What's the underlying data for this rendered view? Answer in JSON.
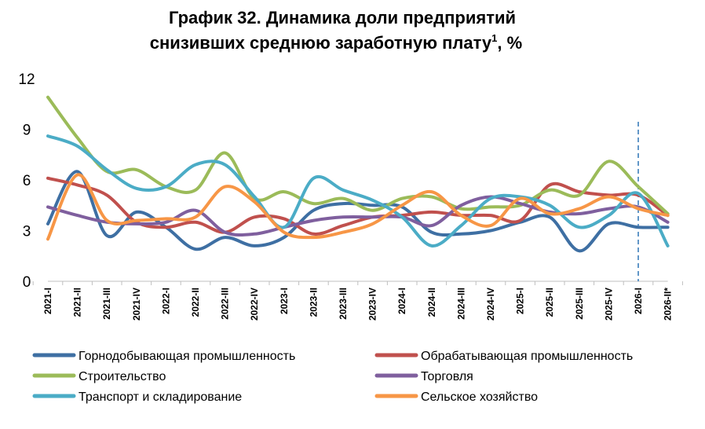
{
  "chart_data": {
    "type": "line",
    "title_line1": "График 32. Динамика доли предприятий",
    "title_line2": "снизивших среднюю заработную плату",
    "title_sup": "1",
    "title_suffix": ", %",
    "ylim": [
      0,
      12
    ],
    "yticks": [
      0,
      3,
      6,
      9,
      12
    ],
    "categories": [
      "2021-I",
      "2021-II",
      "2021-III",
      "2021-IV",
      "2022-I",
      "2022-II",
      "2022-III",
      "2022-IV",
      "2023-I",
      "2023-II",
      "2023-III",
      "2023-IV",
      "2024-I",
      "2024-II",
      "2024-III",
      "2024-IV",
      "2025-I",
      "2025-II",
      "2025-III",
      "2025-IV",
      "2026-I",
      "2026-II*"
    ],
    "forecast_marker_category": "2026-I",
    "grid": false,
    "legend_position": "bottom",
    "series": [
      {
        "name": "Горнодобывающая промышленность",
        "color": "#3e6fa3",
        "values": [
          3.4,
          6.5,
          2.7,
          4.1,
          3.2,
          1.9,
          2.6,
          2.1,
          2.6,
          4.2,
          4.6,
          4.5,
          4.4,
          2.9,
          2.8,
          3.0,
          3.5,
          3.8,
          1.8,
          3.4,
          3.2,
          3.2
        ]
      },
      {
        "name": "Обрабатывающая промышленность",
        "color": "#c0504d",
        "values": [
          6.1,
          5.7,
          5.1,
          3.5,
          3.2,
          3.5,
          2.9,
          3.8,
          3.7,
          2.8,
          3.3,
          3.8,
          3.9,
          4.1,
          3.9,
          3.9,
          3.6,
          5.7,
          5.3,
          5.1,
          5.1,
          3.9
        ]
      },
      {
        "name": "Строительство",
        "color": "#9bbb59",
        "values": [
          10.9,
          8.5,
          6.5,
          6.6,
          5.6,
          5.4,
          7.6,
          4.9,
          5.3,
          4.6,
          4.9,
          4.2,
          4.9,
          5.0,
          4.3,
          4.4,
          4.5,
          5.4,
          5.1,
          7.1,
          5.6,
          4.0
        ]
      },
      {
        "name": "Торговля",
        "color": "#7f5f9e",
        "values": [
          4.4,
          3.9,
          3.5,
          3.4,
          3.5,
          4.2,
          2.9,
          2.8,
          3.2,
          3.6,
          3.8,
          3.8,
          3.8,
          3.3,
          4.5,
          5.0,
          4.6,
          4.1,
          4.0,
          4.3,
          4.4,
          3.5
        ]
      },
      {
        "name": "Транспорт и складирование",
        "color": "#4bacc6",
        "values": [
          8.6,
          8.0,
          6.6,
          5.5,
          5.6,
          6.9,
          6.9,
          5.0,
          3.2,
          6.1,
          5.4,
          4.8,
          3.8,
          2.1,
          3.3,
          4.9,
          5.0,
          4.5,
          3.2,
          3.9,
          5.2,
          2.1
        ]
      },
      {
        "name": "Сельское хозяйство",
        "color": "#f79646",
        "values": [
          2.5,
          6.3,
          3.6,
          3.6,
          3.7,
          3.8,
          5.6,
          4.7,
          2.9,
          2.6,
          2.9,
          3.4,
          4.5,
          5.3,
          3.9,
          3.3,
          4.9,
          4.0,
          4.3,
          5.0,
          4.3,
          3.9
        ]
      }
    ]
  }
}
